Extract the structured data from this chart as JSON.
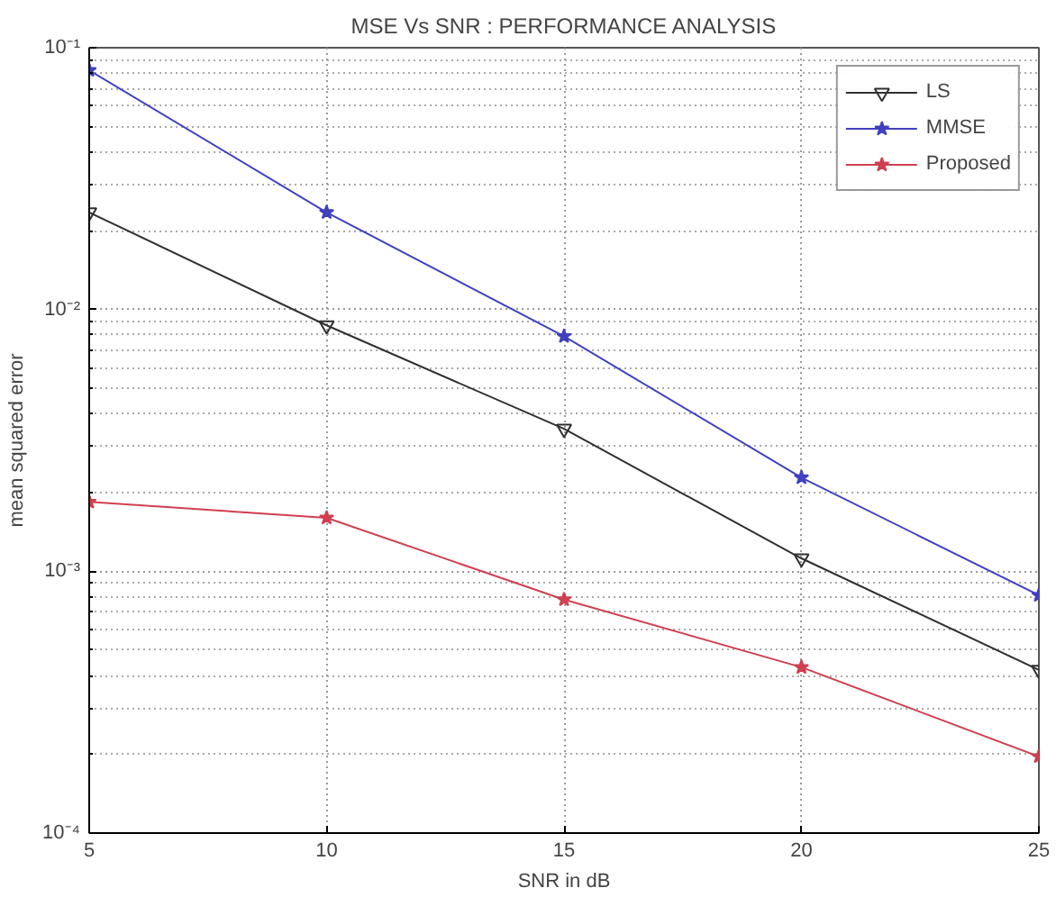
{
  "chart_data": {
    "type": "line",
    "title": "MSE Vs SNR : PERFORMANCE ANALYSIS",
    "xlabel": "SNR in dB",
    "ylabel": "mean squared error",
    "x": [
      5,
      10,
      15,
      20,
      25
    ],
    "series": [
      {
        "name": "LS",
        "color": "#303030",
        "marker": "triangle",
        "values": [
          0.0235,
          0.0087,
          0.0035,
          0.00112,
          0.00042
        ]
      },
      {
        "name": "MMSE",
        "color": "#4040c0",
        "marker": "star",
        "values": [
          0.082,
          0.0235,
          0.0079,
          0.00228,
          0.00081
        ]
      },
      {
        "name": "Proposed",
        "color": "#d04050",
        "marker": "star",
        "values": [
          0.00184,
          0.0016,
          0.00078,
          0.00043,
          0.000196
        ]
      }
    ],
    "log": "y",
    "xlim": [
      5,
      25
    ],
    "ylim": [
      0.0001,
      0.1
    ],
    "xticks": [
      5,
      10,
      15,
      20,
      25
    ],
    "yticks": [
      {
        "value": 0.0001,
        "label": "10⁻⁴"
      },
      {
        "value": 0.001,
        "label": "10⁻³"
      },
      {
        "value": 0.01,
        "label": "10⁻²"
      },
      {
        "value": 0.1,
        "label": "10⁻¹"
      }
    ],
    "grid": true,
    "legend": "top right",
    "line_style": "solid"
  }
}
